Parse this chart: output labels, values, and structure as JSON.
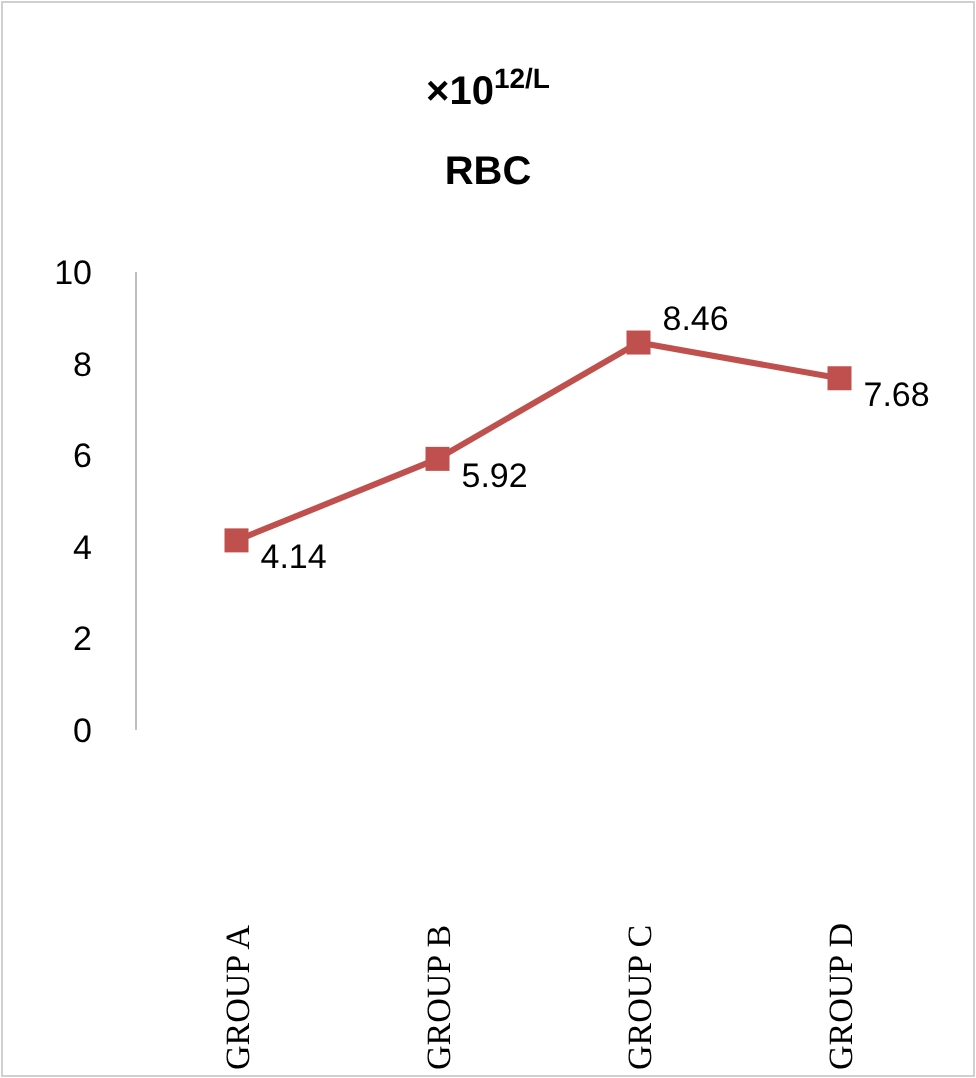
{
  "chart_data": {
    "type": "line",
    "title": "×10$^{12/L}$",
    "subtitle": "RBC",
    "categories": [
      "GROUP A",
      "GROUP B",
      "GROUP C",
      "GROUP D"
    ],
    "series": [
      {
        "color": "#c0504d",
        "values": [
          4.14,
          5.92,
          8.46,
          7.68
        ]
      }
    ],
    "ylim": [
      0,
      10
    ],
    "yticks": [
      0,
      2,
      4,
      6,
      8,
      10
    ],
    "grid": false,
    "marker": "square",
    "line_style": "solid",
    "data_labels": true
  }
}
